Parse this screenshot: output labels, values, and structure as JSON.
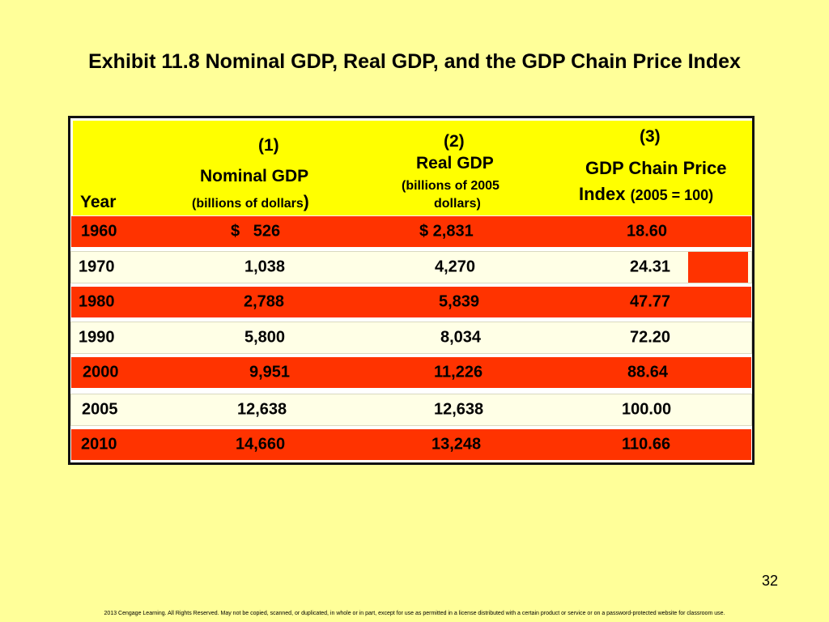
{
  "title": "Exhibit 11.8 Nominal GDP, Real GDP, and the GDP Chain Price Index",
  "table": {
    "headers": {
      "year": "Year",
      "col1_num": "(1)",
      "col1_label": "Nominal GDP",
      "col1_unit": "(billions of dollars",
      "col1_unit_close": ")",
      "col2_num": "(2)",
      "col2_label": "Real GDP",
      "col2_unit_line1": "(billions of 2005",
      "col2_unit_line2": "dollars)",
      "col3_num": "(3)",
      "col3_label_line1": "GDP Chain Price",
      "col3_label_line2": "Index",
      "col3_unit": "(2005 = 100)"
    },
    "rows": [
      {
        "year": "1960",
        "nominal": "$   526",
        "real": "$ 2,831",
        "index": "18.60"
      },
      {
        "year": "1970",
        "nominal": "1,038",
        "real": "4,270",
        "index": "24.31"
      },
      {
        "year": "1980",
        "nominal": "2,788",
        "real": "5,839",
        "index": "47.77"
      },
      {
        "year": "1990",
        "nominal": "5,800",
        "real": "8,034",
        "index": "72.20"
      },
      {
        "year": "2000",
        "nominal": "9,951",
        "real": "11,226",
        "index": "88.64"
      },
      {
        "year": "2005",
        "nominal": "12,638",
        "real": "12,638",
        "index": "100.00"
      },
      {
        "year": "2010",
        "nominal": "14,660",
        "real": "13,248",
        "index": "110.66"
      }
    ]
  },
  "page_number": "32",
  "footer": "2013 Cengage Learning. All Rights Reserved. May not be copied, scanned, or duplicated, in whole or in part, except for use as permitted in a license distributed with a certain product or service or on a password-protected website for classroom use.",
  "colors": {
    "background": "#ffff99",
    "header": "#ffff00",
    "row_red": "#ff3300",
    "row_cream": "#ffffe6"
  }
}
